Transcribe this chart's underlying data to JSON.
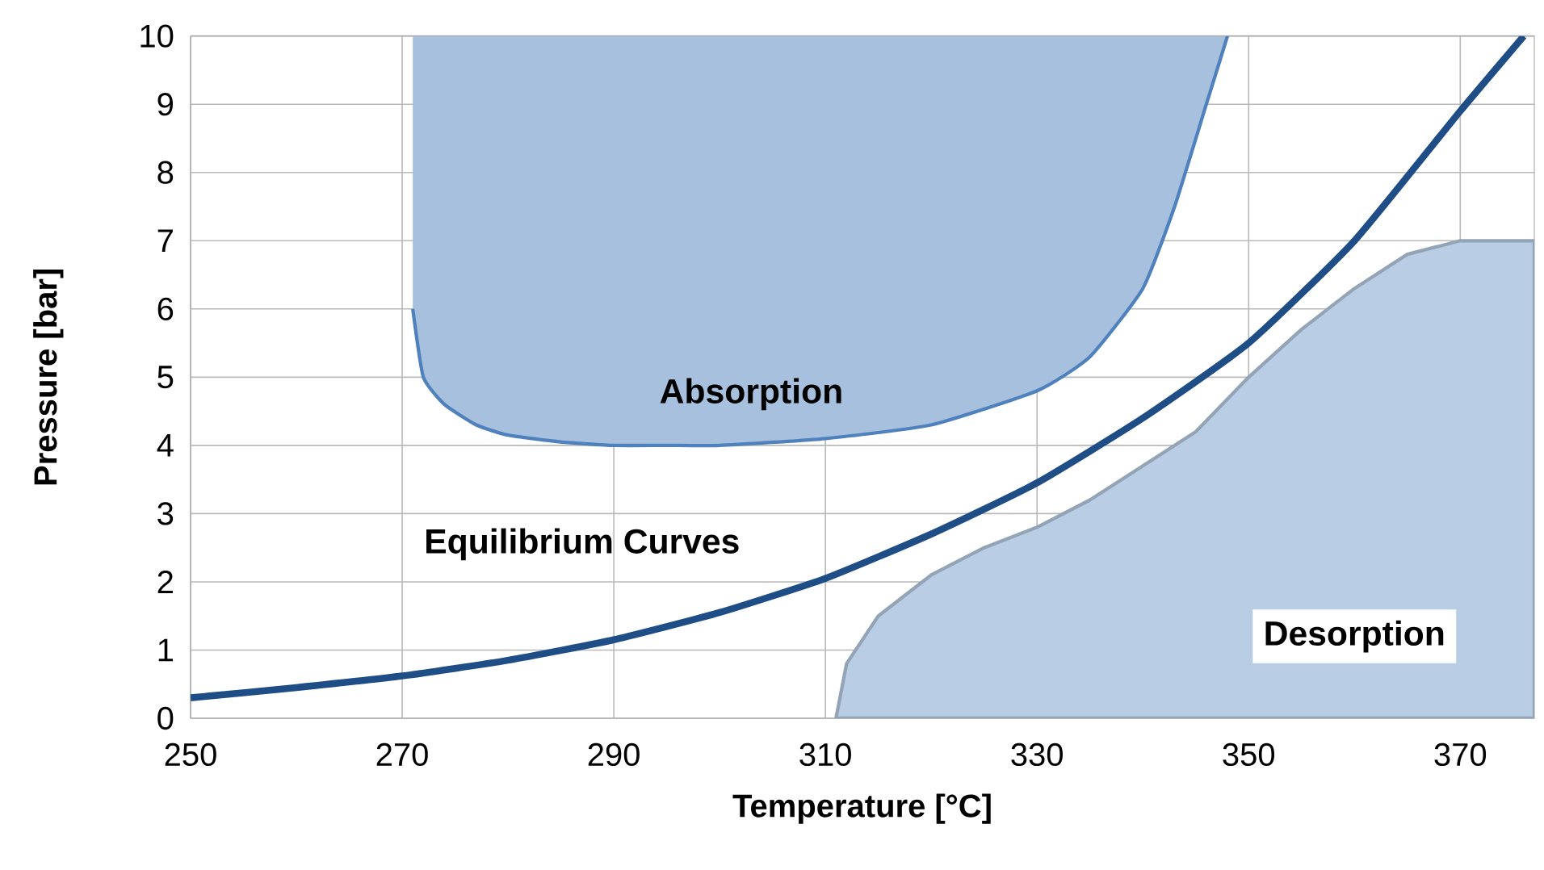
{
  "chart_data": {
    "type": "area",
    "xlabel": "Temperature [°C]",
    "ylabel": "Pressure [bar]",
    "xlim": [
      250,
      377
    ],
    "ylim": [
      0,
      10
    ],
    "xticks": [
      250,
      270,
      290,
      310,
      330,
      350,
      370
    ],
    "yticks": [
      0,
      1,
      2,
      3,
      4,
      5,
      6,
      7,
      8,
      9,
      10
    ],
    "grid": true,
    "marker": "none",
    "line_style": "solid",
    "series": [
      {
        "name": "Absorption",
        "type": "line",
        "color": "#4f81bd",
        "x": [
          271,
          272,
          274,
          277,
          280,
          285,
          290,
          295,
          300,
          310,
          320,
          330,
          335,
          340,
          343,
          346,
          348
        ],
        "values": [
          6,
          5.0,
          4.6,
          4.3,
          4.15,
          4.05,
          4.0,
          4.0,
          4.0,
          4.1,
          4.3,
          4.8,
          5.3,
          6.3,
          7.5,
          9,
          10
        ],
        "lower": [
          6,
          5.0,
          4.6,
          4.3,
          4.15,
          4.05,
          4.0,
          4.0,
          4.0,
          4.1,
          4.3,
          4.8,
          5.3,
          6.3,
          7.5,
          9,
          10
        ],
        "upper": [
          10,
          10,
          10,
          10,
          10,
          10,
          10,
          10,
          10,
          10,
          10,
          10,
          10,
          10,
          10,
          10,
          10
        ]
      },
      {
        "name": "Desorption",
        "color": "#b9cde5",
        "x": [
          311,
          312,
          315,
          320,
          325,
          330,
          335,
          340,
          345,
          350,
          355,
          360,
          365,
          370,
          377
        ],
        "values": [
          0,
          0.8,
          1.5,
          2.1,
          2.5,
          2.8,
          3.2,
          3.7,
          4.2,
          5.0,
          5.7,
          6.3,
          6.8,
          7.0,
          7.0
        ]
      },
      {
        "name": "Equilibrium Curves",
        "type": "line",
        "color": "#1f4e87",
        "x": [
          250,
          260,
          270,
          280,
          290,
          300,
          310,
          320,
          330,
          340,
          350,
          360,
          370,
          376
        ],
        "values": [
          0.3,
          0.45,
          0.62,
          0.85,
          1.15,
          1.55,
          2.05,
          2.7,
          3.45,
          4.4,
          5.5,
          7.0,
          8.9,
          10
        ]
      }
    ]
  }
}
